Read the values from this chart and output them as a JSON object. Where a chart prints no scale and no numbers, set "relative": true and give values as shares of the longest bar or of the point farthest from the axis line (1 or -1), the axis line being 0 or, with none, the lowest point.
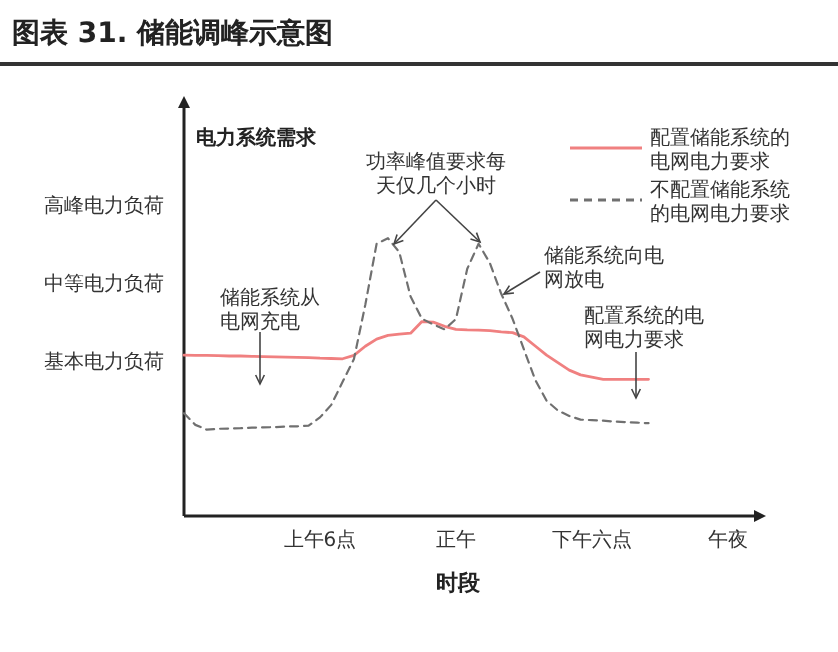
{
  "chart_data": {
    "type": "line",
    "title": "图表 31. 储能调峰示意图",
    "xlabel": "时段",
    "ylabel": "电力系统需求",
    "categories": [
      null,
      null,
      null,
      null,
      null,
      null,
      null,
      null,
      null,
      null,
      null,
      null,
      "上午6点",
      null,
      null,
      null,
      null,
      null,
      null,
      null,
      null,
      null,
      null,
      null,
      "正午",
      null,
      null,
      null,
      null,
      null,
      null,
      null,
      null,
      null,
      null,
      null,
      "下午六点",
      null,
      null,
      null,
      null,
      null,
      null,
      null,
      null,
      null,
      null,
      null,
      "午夜"
    ],
    "relative": true,
    "legend": "top right",
    "series": [
      {
        "name": "配置储能系统的电网电力要求",
        "color": "#f08080",
        "line_style": "solid",
        "values": [
          0.579,
          0.578,
          0.578,
          0.577,
          0.576,
          0.576,
          0.575,
          0.574,
          0.573,
          0.572,
          0.571,
          0.57,
          0.568,
          0.567,
          0.566,
          0.578,
          0.611,
          0.637,
          0.65,
          0.655,
          0.658,
          0.7,
          0.698,
          0.683,
          0.672,
          0.67,
          0.669,
          0.667,
          0.663,
          0.66,
          0.645,
          0.612,
          0.579,
          0.552,
          0.525,
          0.508,
          0.5,
          0.492,
          0.492,
          0.492,
          0.492,
          0.492,
          null,
          null,
          null,
          null,
          null,
          null,
          null
        ]
      },
      {
        "name": "不配置储能系统的电网电力要求",
        "color": "#707070",
        "line_style": "dashed",
        "values": [
          0.37,
          0.328,
          0.311,
          0.314,
          0.315,
          0.316,
          0.318,
          0.319,
          0.32,
          0.322,
          0.323,
          0.325,
          0.355,
          0.4,
          0.483,
          0.565,
          0.76,
          0.98,
          1,
          0.95,
          0.79,
          0.71,
          0.69,
          0.672,
          0.709,
          0.89,
          0.98,
          0.91,
          0.8,
          0.71,
          0.6,
          0.49,
          0.415,
          0.38,
          0.36,
          0.347,
          0.345,
          0.343,
          0.34,
          0.338,
          0.336,
          0.334,
          null,
          null,
          null,
          null,
          null,
          null,
          null
        ]
      }
    ],
    "annotations": [
      "功率峰值要求每天仅几个小时",
      "储能系统从电网充电",
      "储能系统向电网放电",
      "配置系统的电网电力要求",
      "基本电力负荷",
      "中等电力负荷",
      "高峰电力负荷"
    ]
  }
}
